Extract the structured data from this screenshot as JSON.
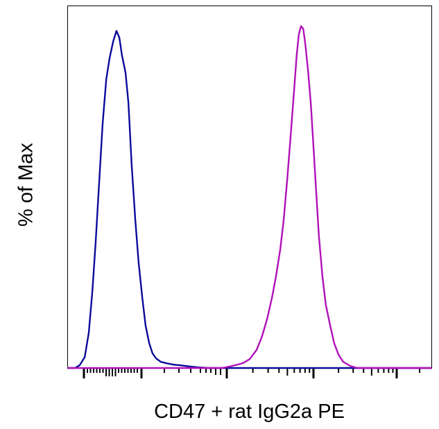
{
  "chart_data": {
    "type": "line",
    "title": "",
    "xlabel": "CD47 + rat IgG2a PE",
    "ylabel": "% of Max",
    "xlim": [
      0,
      1000
    ],
    "ylim": [
      0,
      106
    ],
    "x_tick_labels": false,
    "grid": false,
    "legend": "none",
    "series": [
      {
        "color": "#0a0a9a",
        "points": [
          [
            0,
            0
          ],
          [
            21,
            0
          ],
          [
            34,
            0.8
          ],
          [
            48,
            3.2
          ],
          [
            59,
            10.3
          ],
          [
            69,
            22.5
          ],
          [
            78,
            36.7
          ],
          [
            88,
            55
          ],
          [
            97,
            71.2
          ],
          [
            107,
            84.4
          ],
          [
            116,
            90.5
          ],
          [
            126,
            95.5
          ],
          [
            135,
            98.6
          ],
          [
            143,
            96.6
          ],
          [
            150,
            91.5
          ],
          [
            160,
            86.4
          ],
          [
            168,
            77.5
          ],
          [
            177,
            59.2
          ],
          [
            187,
            43
          ],
          [
            196,
            30.8
          ],
          [
            206,
            20.7
          ],
          [
            215,
            12.4
          ],
          [
            225,
            7.3
          ],
          [
            234,
            4.3
          ],
          [
            244,
            2.8
          ],
          [
            257,
            1.8
          ],
          [
            272,
            1.4
          ],
          [
            291,
            1
          ],
          [
            310,
            0.8
          ],
          [
            339,
            0.4
          ],
          [
            358,
            0.2
          ],
          [
            387,
            0
          ],
          [
            1000,
            0
          ]
        ]
      },
      {
        "color": "#b010b8",
        "points": [
          [
            0,
            0
          ],
          [
            425,
            0
          ],
          [
            453,
            0.6
          ],
          [
            482,
            1.4
          ],
          [
            501,
            2.6
          ],
          [
            520,
            5.3
          ],
          [
            535,
            9.3
          ],
          [
            549,
            14.4
          ],
          [
            562,
            20.5
          ],
          [
            573,
            26.6
          ],
          [
            585,
            34.7
          ],
          [
            594,
            42.8
          ],
          [
            604,
            55
          ],
          [
            613,
            67.1
          ],
          [
            623,
            81.3
          ],
          [
            630,
            91.5
          ],
          [
            636,
            97.6
          ],
          [
            642,
            100
          ],
          [
            648,
            99.2
          ],
          [
            653,
            95.5
          ],
          [
            661,
            87.4
          ],
          [
            669,
            77.3
          ],
          [
            676,
            65.1
          ],
          [
            684,
            50.9
          ],
          [
            691,
            38.7
          ],
          [
            701,
            26.6
          ],
          [
            710,
            18.5
          ],
          [
            722,
            12.4
          ],
          [
            733,
            7.3
          ],
          [
            745,
            3.9
          ],
          [
            758,
            1.8
          ],
          [
            777,
            0.6
          ],
          [
            796,
            0
          ],
          [
            1000,
            0
          ]
        ]
      }
    ]
  }
}
